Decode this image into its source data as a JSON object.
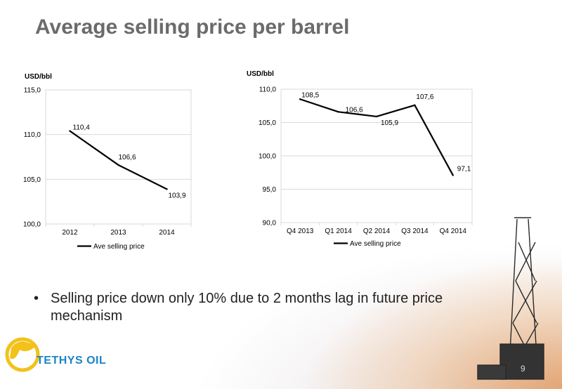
{
  "slide": {
    "title": "Average selling price per barrel",
    "bullet": "Selling price down only 10% due to 2 months lag in future price mechanism",
    "logo_text": "TETHYS OIL",
    "page_number": "9"
  },
  "colors": {
    "title": "#6b6b6b",
    "line": "#000000",
    "logo_blue": "#1b84c7",
    "logo_gold": "#f2c21a"
  },
  "chart_data": [
    {
      "type": "line",
      "unit_label": "USD/bbl",
      "categories": [
        "2012",
        "2013",
        "2014"
      ],
      "series": [
        {
          "name": "Ave selling price",
          "values": [
            110.4,
            106.6,
            103.9
          ]
        }
      ],
      "data_labels": [
        "110,4",
        "106,6",
        "103,9"
      ],
      "ylim": [
        100,
        115
      ],
      "yticks": [
        100,
        105,
        110,
        115
      ],
      "ytick_labels": [
        "100,0",
        "105,0",
        "110,0",
        "115,0"
      ],
      "grid": true,
      "legend": "bottom"
    },
    {
      "type": "line",
      "unit_label": "USD/bbl",
      "categories": [
        "Q4 2013",
        "Q1 2014",
        "Q2 2014",
        "Q3 2014",
        "Q4 2014"
      ],
      "series": [
        {
          "name": "Ave selling price",
          "values": [
            108.5,
            106.6,
            105.9,
            107.6,
            97.1
          ]
        }
      ],
      "data_labels": [
        "108,5",
        "106,6",
        "105,9",
        "107,6",
        "97,1"
      ],
      "ylim": [
        90,
        110
      ],
      "yticks": [
        90,
        95,
        100,
        105,
        110
      ],
      "ytick_labels": [
        "90,0",
        "95,0",
        "100,0",
        "105,0",
        "110,0"
      ],
      "grid": true,
      "legend": "bottom"
    }
  ]
}
